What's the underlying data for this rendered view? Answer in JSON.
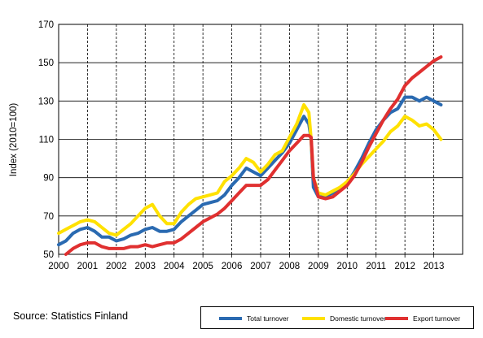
{
  "chart_data": {
    "type": "line",
    "title": "",
    "xlabel": "",
    "ylabel": "Index (2010=100)",
    "ylim": [
      50,
      170
    ],
    "yticks": [
      50,
      70,
      90,
      110,
      130,
      150,
      170
    ],
    "xlim": [
      2000,
      2014
    ],
    "xticks": [
      "2000",
      "2001",
      "2002",
      "2003",
      "2004",
      "2005",
      "2006",
      "2007",
      "2008",
      "2009",
      "2010",
      "2011",
      "2012",
      "2013"
    ],
    "grid": "dashed vertical at years, solid horizontal",
    "legend_position": "bottom-right",
    "series": [
      {
        "name": "Total turnover",
        "color": "#2a6ab1",
        "points": [
          [
            2000.0,
            55
          ],
          [
            2000.25,
            57
          ],
          [
            2000.5,
            61
          ],
          [
            2000.75,
            63
          ],
          [
            2001.0,
            64
          ],
          [
            2001.25,
            62
          ],
          [
            2001.5,
            59
          ],
          [
            2001.75,
            59
          ],
          [
            2002.0,
            57
          ],
          [
            2002.25,
            58
          ],
          [
            2002.5,
            60
          ],
          [
            2002.75,
            61
          ],
          [
            2003.0,
            63
          ],
          [
            2003.25,
            64
          ],
          [
            2003.5,
            62
          ],
          [
            2003.75,
            62
          ],
          [
            2004.0,
            63
          ],
          [
            2004.25,
            67
          ],
          [
            2004.5,
            70
          ],
          [
            2004.75,
            73
          ],
          [
            2005.0,
            76
          ],
          [
            2005.25,
            77
          ],
          [
            2005.5,
            78
          ],
          [
            2005.75,
            81
          ],
          [
            2006.0,
            86
          ],
          [
            2006.25,
            90
          ],
          [
            2006.5,
            95
          ],
          [
            2006.75,
            93
          ],
          [
            2007.0,
            91
          ],
          [
            2007.25,
            95
          ],
          [
            2007.5,
            99
          ],
          [
            2007.75,
            103
          ],
          [
            2008.0,
            108
          ],
          [
            2008.25,
            115
          ],
          [
            2008.5,
            122
          ],
          [
            2008.67,
            118
          ],
          [
            2008.75,
            110
          ],
          [
            2008.83,
            85
          ],
          [
            2009.0,
            80
          ],
          [
            2009.25,
            80
          ],
          [
            2009.5,
            82
          ],
          [
            2009.75,
            84
          ],
          [
            2010.0,
            87
          ],
          [
            2010.25,
            93
          ],
          [
            2010.5,
            100
          ],
          [
            2010.75,
            108
          ],
          [
            2011.0,
            115
          ],
          [
            2011.25,
            120
          ],
          [
            2011.5,
            124
          ],
          [
            2011.75,
            126
          ],
          [
            2012.0,
            132
          ],
          [
            2012.25,
            132
          ],
          [
            2012.5,
            130
          ],
          [
            2012.75,
            132
          ],
          [
            2013.0,
            130
          ],
          [
            2013.25,
            128
          ]
        ]
      },
      {
        "name": "Domestic turnover",
        "color": "#ffe100",
        "points": [
          [
            2000.0,
            61
          ],
          [
            2000.25,
            63
          ],
          [
            2000.5,
            65
          ],
          [
            2000.75,
            67
          ],
          [
            2001.0,
            68
          ],
          [
            2001.25,
            67
          ],
          [
            2001.5,
            64
          ],
          [
            2001.75,
            61
          ],
          [
            2002.0,
            60
          ],
          [
            2002.25,
            63
          ],
          [
            2002.5,
            66
          ],
          [
            2002.75,
            70
          ],
          [
            2003.0,
            74
          ],
          [
            2003.25,
            76
          ],
          [
            2003.5,
            70
          ],
          [
            2003.75,
            66
          ],
          [
            2004.0,
            66
          ],
          [
            2004.25,
            72
          ],
          [
            2004.5,
            76
          ],
          [
            2004.75,
            79
          ],
          [
            2005.0,
            80
          ],
          [
            2005.25,
            81
          ],
          [
            2005.5,
            82
          ],
          [
            2005.75,
            88
          ],
          [
            2006.0,
            91
          ],
          [
            2006.25,
            95
          ],
          [
            2006.5,
            100
          ],
          [
            2006.75,
            98
          ],
          [
            2007.0,
            93
          ],
          [
            2007.25,
            97
          ],
          [
            2007.5,
            102
          ],
          [
            2007.75,
            104
          ],
          [
            2008.0,
            111
          ],
          [
            2008.25,
            118
          ],
          [
            2008.5,
            128
          ],
          [
            2008.67,
            124
          ],
          [
            2008.75,
            110
          ],
          [
            2008.83,
            90
          ],
          [
            2009.0,
            82
          ],
          [
            2009.25,
            81
          ],
          [
            2009.5,
            83
          ],
          [
            2009.75,
            85
          ],
          [
            2010.0,
            88
          ],
          [
            2010.25,
            92
          ],
          [
            2010.5,
            97
          ],
          [
            2010.75,
            101
          ],
          [
            2011.0,
            105
          ],
          [
            2011.25,
            109
          ],
          [
            2011.5,
            114
          ],
          [
            2011.75,
            117
          ],
          [
            2012.0,
            122
          ],
          [
            2012.25,
            120
          ],
          [
            2012.5,
            117
          ],
          [
            2012.75,
            118
          ],
          [
            2013.0,
            115
          ],
          [
            2013.25,
            110
          ]
        ]
      },
      {
        "name": "Export turnover",
        "color": "#e03030",
        "points": [
          [
            2000.25,
            50
          ],
          [
            2000.5,
            53
          ],
          [
            2000.75,
            55
          ],
          [
            2001.0,
            56
          ],
          [
            2001.25,
            56
          ],
          [
            2001.5,
            54
          ],
          [
            2001.75,
            53
          ],
          [
            2002.0,
            53
          ],
          [
            2002.25,
            53
          ],
          [
            2002.5,
            54
          ],
          [
            2002.75,
            54
          ],
          [
            2003.0,
            55
          ],
          [
            2003.25,
            54
          ],
          [
            2003.5,
            55
          ],
          [
            2003.75,
            56
          ],
          [
            2004.0,
            56
          ],
          [
            2004.25,
            58
          ],
          [
            2004.5,
            61
          ],
          [
            2004.75,
            64
          ],
          [
            2005.0,
            67
          ],
          [
            2005.25,
            69
          ],
          [
            2005.5,
            71
          ],
          [
            2005.75,
            74
          ],
          [
            2006.0,
            78
          ],
          [
            2006.25,
            82
          ],
          [
            2006.5,
            86
          ],
          [
            2006.75,
            86
          ],
          [
            2007.0,
            86
          ],
          [
            2007.25,
            89
          ],
          [
            2007.5,
            94
          ],
          [
            2007.75,
            99
          ],
          [
            2008.0,
            104
          ],
          [
            2008.25,
            108
          ],
          [
            2008.5,
            112
          ],
          [
            2008.67,
            112
          ],
          [
            2008.75,
            111
          ],
          [
            2008.83,
            90
          ],
          [
            2009.0,
            80
          ],
          [
            2009.25,
            79
          ],
          [
            2009.5,
            80
          ],
          [
            2009.75,
            83
          ],
          [
            2010.0,
            86
          ],
          [
            2010.25,
            91
          ],
          [
            2010.5,
            98
          ],
          [
            2010.75,
            106
          ],
          [
            2011.0,
            113
          ],
          [
            2011.25,
            120
          ],
          [
            2011.5,
            126
          ],
          [
            2011.75,
            131
          ],
          [
            2012.0,
            138
          ],
          [
            2012.25,
            142
          ],
          [
            2012.5,
            145
          ],
          [
            2012.75,
            148
          ],
          [
            2013.0,
            151
          ],
          [
            2013.25,
            153
          ]
        ]
      }
    ]
  },
  "source": "Source: Statistics Finland"
}
